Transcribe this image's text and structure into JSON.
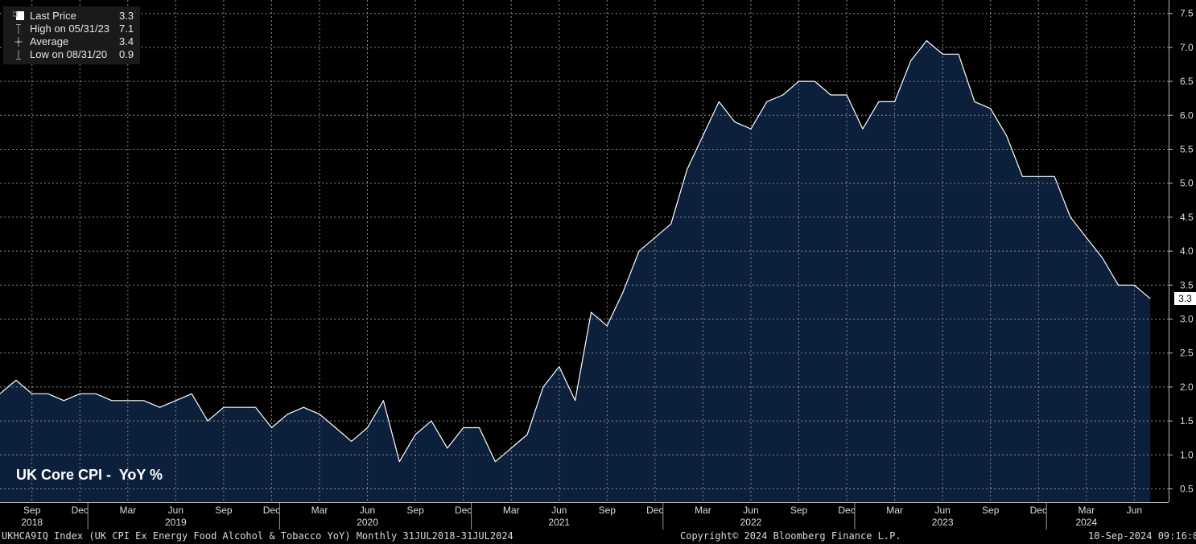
{
  "legend": {
    "last": {
      "label": "Last Price",
      "value": "3.3"
    },
    "high": {
      "label": "High on 05/31/23",
      "value": "7.1"
    },
    "average": {
      "label": "Average",
      "value": "3.4"
    },
    "low": {
      "label": "Low on 08/31/20",
      "value": "0.9"
    }
  },
  "footer": {
    "left": "UKHCA9IQ Index (UK CPI Ex Energy Food Alcohol & Tobacco YoY) Monthly 31JUL2018-31JUL2024",
    "center": "Copyright© 2024 Bloomberg Finance L.P.",
    "right": "10-Sep-2024 09:16:07"
  },
  "colors": {
    "area": "#0c1f3b",
    "line": "#ffffff",
    "grid": "#8a8a8a",
    "background": "#000000"
  },
  "chart_data": {
    "type": "area",
    "title": "UK Core CPI -  YoY %",
    "xlabel": "",
    "ylabel": "",
    "ylim": [
      0.25,
      7.7
    ],
    "yticks": [
      "0.5",
      "1.0",
      "1.5",
      "2.0",
      "2.5",
      "3.0",
      "3.5",
      "4.0",
      "4.5",
      "5.0",
      "5.5",
      "6.0",
      "6.5",
      "7.0",
      "7.5"
    ],
    "month_ticks": [
      {
        "label": "Sep",
        "index": 2
      },
      {
        "label": "Dec",
        "index": 5
      },
      {
        "label": "Mar",
        "index": 8
      },
      {
        "label": "Jun",
        "index": 11
      },
      {
        "label": "Sep",
        "index": 14
      },
      {
        "label": "Dec",
        "index": 17
      },
      {
        "label": "Mar",
        "index": 20
      },
      {
        "label": "Jun",
        "index": 23
      },
      {
        "label": "Sep",
        "index": 26
      },
      {
        "label": "Dec",
        "index": 29
      },
      {
        "label": "Mar",
        "index": 32
      },
      {
        "label": "Jun",
        "index": 35
      },
      {
        "label": "Sep",
        "index": 38
      },
      {
        "label": "Dec",
        "index": 41
      },
      {
        "label": "Mar",
        "index": 44
      },
      {
        "label": "Jun",
        "index": 47
      },
      {
        "label": "Sep",
        "index": 50
      },
      {
        "label": "Dec",
        "index": 53
      },
      {
        "label": "Mar",
        "index": 56
      },
      {
        "label": "Jun",
        "index": 59
      },
      {
        "label": "Sep",
        "index": 62
      },
      {
        "label": "Dec",
        "index": 65
      },
      {
        "label": "Mar",
        "index": 68
      },
      {
        "label": "Jun",
        "index": 71
      }
    ],
    "year_ticks": [
      {
        "label": "2018",
        "index": 2
      },
      {
        "label": "2019",
        "index": 11
      },
      {
        "label": "2020",
        "index": 23
      },
      {
        "label": "2021",
        "index": 35
      },
      {
        "label": "2022",
        "index": 47
      },
      {
        "label": "2023",
        "index": 59
      },
      {
        "label": "2024",
        "index": 68
      }
    ],
    "year_separators": [
      5,
      17,
      29,
      41,
      53,
      65
    ],
    "last_value_label": "3.3",
    "x": [
      "2018-07",
      "2018-08",
      "2018-09",
      "2018-10",
      "2018-11",
      "2018-12",
      "2019-01",
      "2019-02",
      "2019-03",
      "2019-04",
      "2019-05",
      "2019-06",
      "2019-07",
      "2019-08",
      "2019-09",
      "2019-10",
      "2019-11",
      "2019-12",
      "2020-01",
      "2020-02",
      "2020-03",
      "2020-04",
      "2020-05",
      "2020-06",
      "2020-07",
      "2020-08",
      "2020-09",
      "2020-10",
      "2020-11",
      "2020-12",
      "2021-01",
      "2021-02",
      "2021-03",
      "2021-04",
      "2021-05",
      "2021-06",
      "2021-07",
      "2021-08",
      "2021-09",
      "2021-10",
      "2021-11",
      "2021-12",
      "2022-01",
      "2022-02",
      "2022-03",
      "2022-04",
      "2022-05",
      "2022-06",
      "2022-07",
      "2022-08",
      "2022-09",
      "2022-10",
      "2022-11",
      "2022-12",
      "2023-01",
      "2023-02",
      "2023-03",
      "2023-04",
      "2023-05",
      "2023-06",
      "2023-07",
      "2023-08",
      "2023-09",
      "2023-10",
      "2023-11",
      "2023-12",
      "2024-01",
      "2024-02",
      "2024-03",
      "2024-04",
      "2024-05",
      "2024-06",
      "2024-07"
    ],
    "values": [
      1.9,
      2.1,
      1.9,
      1.9,
      1.8,
      1.9,
      1.9,
      1.8,
      1.8,
      1.8,
      1.7,
      1.8,
      1.9,
      1.5,
      1.7,
      1.7,
      1.7,
      1.4,
      1.6,
      1.7,
      1.6,
      1.4,
      1.2,
      1.4,
      1.8,
      0.9,
      1.3,
      1.5,
      1.1,
      1.4,
      1.4,
      0.9,
      1.1,
      1.3,
      2.0,
      2.3,
      1.8,
      3.1,
      2.9,
      3.4,
      4.0,
      4.2,
      4.4,
      5.2,
      5.7,
      6.2,
      5.9,
      5.8,
      6.2,
      6.3,
      6.5,
      6.5,
      6.3,
      6.3,
      5.8,
      6.2,
      6.2,
      6.8,
      7.1,
      6.9,
      6.9,
      6.2,
      6.1,
      5.7,
      5.1,
      5.1,
      5.1,
      4.5,
      4.2,
      3.9,
      3.5,
      3.5,
      3.3
    ]
  }
}
